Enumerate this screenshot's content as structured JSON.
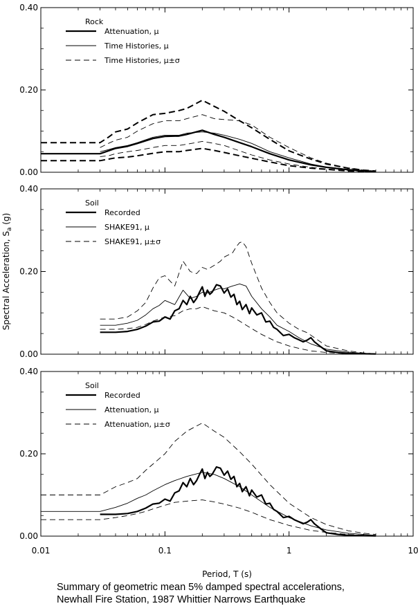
{
  "caption": [
    "Summary of geometric mean 5% damped spectral accelerations,",
    "Newhall Fire Station, 1987 Whittier Narrows Earthquake"
  ],
  "chart_data": [
    {
      "type": "line",
      "panel_title": "Rock",
      "xscale": "log",
      "xlim": [
        0.01,
        10
      ],
      "ylim": [
        0,
        0.4
      ],
      "yticks": [
        "0.00",
        "0.20",
        "0.40"
      ],
      "ylabel": "",
      "xlabel": "",
      "legend_position": "top-left",
      "series": [
        {
          "name": "Attenuation, μ",
          "style": "thick-solid",
          "bound": "mu",
          "x": [
            0.01,
            0.03,
            0.035,
            0.04,
            0.05,
            0.06,
            0.08,
            0.1,
            0.13,
            0.15,
            0.2,
            0.25,
            0.3,
            0.4,
            0.5,
            0.7,
            1.0,
            1.5,
            2.0,
            3.0,
            4.0,
            5.0
          ],
          "y": [
            0.045,
            0.045,
            0.052,
            0.058,
            0.063,
            0.07,
            0.082,
            0.087,
            0.088,
            0.092,
            0.102,
            0.092,
            0.085,
            0.072,
            0.062,
            0.045,
            0.03,
            0.018,
            0.012,
            0.006,
            0.003,
            0.002
          ]
        },
        {
          "name": "",
          "style": "thick-dashed",
          "bound": "mu+sigma",
          "x": [
            0.01,
            0.03,
            0.035,
            0.04,
            0.05,
            0.06,
            0.08,
            0.1,
            0.13,
            0.15,
            0.2,
            0.25,
            0.3,
            0.4,
            0.5,
            0.7,
            1.0,
            1.5,
            2.0,
            3.0,
            4.0,
            5.0
          ],
          "y": [
            0.072,
            0.072,
            0.085,
            0.098,
            0.105,
            0.12,
            0.14,
            0.143,
            0.15,
            0.155,
            0.175,
            0.16,
            0.148,
            0.125,
            0.108,
            0.08,
            0.052,
            0.032,
            0.02,
            0.01,
            0.005,
            0.003
          ]
        },
        {
          "name": "",
          "style": "thick-dashed",
          "bound": "mu-sigma",
          "x": [
            0.01,
            0.03,
            0.035,
            0.04,
            0.05,
            0.06,
            0.08,
            0.1,
            0.13,
            0.15,
            0.2,
            0.25,
            0.3,
            0.4,
            0.5,
            0.7,
            1.0,
            1.5,
            2.0,
            3.0,
            4.0,
            5.0
          ],
          "y": [
            0.028,
            0.028,
            0.032,
            0.035,
            0.037,
            0.04,
            0.046,
            0.05,
            0.05,
            0.053,
            0.058,
            0.053,
            0.048,
            0.04,
            0.034,
            0.025,
            0.016,
            0.01,
            0.007,
            0.003,
            0.002,
            0.001
          ]
        },
        {
          "name": "Time Histories, μ",
          "style": "thin-solid",
          "bound": "mu",
          "x": [
            0.03,
            0.035,
            0.04,
            0.05,
            0.06,
            0.08,
            0.1,
            0.13,
            0.15,
            0.2,
            0.25,
            0.3,
            0.4,
            0.5,
            0.7,
            1.0,
            1.5,
            2.0,
            3.0,
            4.0,
            5.0
          ],
          "y": [
            0.05,
            0.055,
            0.06,
            0.065,
            0.072,
            0.085,
            0.09,
            0.09,
            0.095,
            0.098,
            0.095,
            0.09,
            0.08,
            0.07,
            0.05,
            0.035,
            0.02,
            0.013,
            0.007,
            0.004,
            0.002
          ]
        },
        {
          "name": "Time Histories, μ±σ",
          "style": "thin-dashed",
          "bound": "mu+sigma",
          "x": [
            0.03,
            0.035,
            0.04,
            0.05,
            0.06,
            0.08,
            0.1,
            0.13,
            0.15,
            0.2,
            0.25,
            0.3,
            0.4,
            0.5,
            0.7,
            1.0,
            1.5,
            2.0,
            3.0,
            4.0,
            5.0
          ],
          "y": [
            0.06,
            0.07,
            0.078,
            0.085,
            0.1,
            0.118,
            0.125,
            0.125,
            0.13,
            0.14,
            0.13,
            0.128,
            0.125,
            0.115,
            0.085,
            0.06,
            0.035,
            0.022,
            0.01,
            0.005,
            0.003
          ]
        },
        {
          "name": "",
          "style": "thin-dashed",
          "bound": "mu-sigma",
          "x": [
            0.03,
            0.035,
            0.04,
            0.05,
            0.06,
            0.08,
            0.1,
            0.13,
            0.15,
            0.2,
            0.25,
            0.3,
            0.4,
            0.5,
            0.7,
            1.0,
            1.5,
            2.0,
            3.0,
            4.0,
            5.0
          ],
          "y": [
            0.038,
            0.04,
            0.045,
            0.05,
            0.053,
            0.06,
            0.065,
            0.065,
            0.068,
            0.075,
            0.07,
            0.065,
            0.052,
            0.042,
            0.03,
            0.02,
            0.012,
            0.008,
            0.004,
            0.002,
            0.001
          ]
        }
      ]
    },
    {
      "type": "line",
      "panel_title": "Soil",
      "xscale": "log",
      "xlim": [
        0.01,
        10
      ],
      "ylim": [
        0,
        0.4
      ],
      "yticks": [
        "0.00",
        "0.20",
        "0.40"
      ],
      "ylabel": "Spectral Acceleration, S",
      "ylabel_subscript": "a",
      "ylabel_unit": " (g)",
      "xlabel": "",
      "legend_position": "top-left",
      "series": [
        {
          "name": "Recorded",
          "style": "thick-solid",
          "bound": "mu",
          "x": [
            0.03,
            0.04,
            0.05,
            0.06,
            0.07,
            0.08,
            0.09,
            0.1,
            0.11,
            0.12,
            0.13,
            0.14,
            0.15,
            0.16,
            0.17,
            0.18,
            0.19,
            0.2,
            0.21,
            0.22,
            0.23,
            0.24,
            0.26,
            0.28,
            0.3,
            0.32,
            0.34,
            0.36,
            0.38,
            0.4,
            0.42,
            0.45,
            0.48,
            0.5,
            0.55,
            0.6,
            0.65,
            0.7,
            0.75,
            0.8,
            0.9,
            1.0,
            1.1,
            1.2,
            1.3,
            1.4,
            1.5,
            1.6,
            1.8,
            2.0,
            2.5,
            3.0,
            4.0,
            5.0
          ],
          "y": [
            0.053,
            0.053,
            0.055,
            0.06,
            0.068,
            0.078,
            0.08,
            0.09,
            0.085,
            0.105,
            0.11,
            0.13,
            0.12,
            0.14,
            0.125,
            0.135,
            0.15,
            0.163,
            0.14,
            0.155,
            0.145,
            0.15,
            0.168,
            0.165,
            0.148,
            0.158,
            0.138,
            0.145,
            0.12,
            0.128,
            0.108,
            0.12,
            0.098,
            0.112,
            0.095,
            0.1,
            0.078,
            0.08,
            0.065,
            0.06,
            0.045,
            0.048,
            0.04,
            0.035,
            0.03,
            0.034,
            0.04,
            0.03,
            0.018,
            0.008,
            0.004,
            0.002,
            0.001,
            0.0005
          ]
        },
        {
          "name": "SHAKE91, μ",
          "style": "thin-solid",
          "bound": "mu",
          "x": [
            0.03,
            0.04,
            0.05,
            0.06,
            0.07,
            0.08,
            0.09,
            0.1,
            0.12,
            0.14,
            0.16,
            0.18,
            0.2,
            0.22,
            0.25,
            0.28,
            0.3,
            0.35,
            0.4,
            0.45,
            0.5,
            0.6,
            0.7,
            0.8,
            1.0,
            1.2,
            1.5,
            2.0,
            3.0,
            4.0,
            5.0
          ],
          "y": [
            0.07,
            0.07,
            0.075,
            0.082,
            0.095,
            0.11,
            0.118,
            0.13,
            0.12,
            0.155,
            0.135,
            0.14,
            0.15,
            0.148,
            0.155,
            0.16,
            0.158,
            0.165,
            0.17,
            0.165,
            0.14,
            0.11,
            0.09,
            0.07,
            0.055,
            0.04,
            0.025,
            0.012,
            0.005,
            0.002,
            0.001
          ]
        },
        {
          "name": "SHAKE91, μ±σ",
          "style": "thin-dashed",
          "bound": "mu+sigma",
          "x": [
            0.03,
            0.04,
            0.05,
            0.06,
            0.07,
            0.08,
            0.09,
            0.1,
            0.12,
            0.14,
            0.16,
            0.18,
            0.2,
            0.22,
            0.25,
            0.28,
            0.3,
            0.35,
            0.38,
            0.4,
            0.42,
            0.45,
            0.5,
            0.6,
            0.7,
            0.8,
            1.0,
            1.2,
            1.4,
            1.6,
            2.0,
            3.0,
            4.0,
            5.0
          ],
          "y": [
            0.085,
            0.085,
            0.09,
            0.105,
            0.125,
            0.16,
            0.185,
            0.19,
            0.165,
            0.225,
            0.2,
            0.195,
            0.21,
            0.205,
            0.215,
            0.225,
            0.235,
            0.245,
            0.262,
            0.27,
            0.272,
            0.26,
            0.22,
            0.16,
            0.125,
            0.1,
            0.075,
            0.06,
            0.052,
            0.04,
            0.02,
            0.008,
            0.003,
            0.001
          ]
        },
        {
          "name": "",
          "style": "thin-dashed",
          "bound": "mu-sigma",
          "x": [
            0.03,
            0.04,
            0.05,
            0.06,
            0.07,
            0.08,
            0.09,
            0.1,
            0.12,
            0.14,
            0.16,
            0.18,
            0.2,
            0.25,
            0.3,
            0.35,
            0.4,
            0.5,
            0.6,
            0.7,
            0.8,
            1.0,
            1.2,
            1.5,
            2.0,
            3.0,
            4.0,
            5.0
          ],
          "y": [
            0.06,
            0.06,
            0.062,
            0.065,
            0.072,
            0.08,
            0.085,
            0.09,
            0.093,
            0.105,
            0.11,
            0.11,
            0.115,
            0.105,
            0.1,
            0.09,
            0.08,
            0.062,
            0.048,
            0.038,
            0.03,
            0.02,
            0.014,
            0.008,
            0.004,
            0.001,
            0.0005,
            0.0002
          ]
        }
      ]
    },
    {
      "type": "line",
      "panel_title": "Soil",
      "xscale": "log",
      "xlim": [
        0.01,
        10
      ],
      "ylim": [
        0,
        0.4
      ],
      "yticks": [
        "0.00",
        "0.20",
        "0.40"
      ],
      "xticks": [
        "0.01",
        "0.1",
        "1",
        "10"
      ],
      "ylabel": "",
      "xlabel": "Period, T (s)",
      "legend_position": "top-left",
      "series": [
        {
          "name": "Recorded",
          "style": "thick-solid",
          "bound": "mu",
          "x": [
            0.03,
            0.04,
            0.05,
            0.06,
            0.07,
            0.08,
            0.09,
            0.1,
            0.11,
            0.12,
            0.13,
            0.14,
            0.15,
            0.16,
            0.17,
            0.18,
            0.19,
            0.2,
            0.21,
            0.22,
            0.23,
            0.24,
            0.26,
            0.28,
            0.3,
            0.32,
            0.34,
            0.36,
            0.38,
            0.4,
            0.42,
            0.45,
            0.48,
            0.5,
            0.55,
            0.6,
            0.65,
            0.7,
            0.75,
            0.8,
            0.9,
            1.0,
            1.1,
            1.2,
            1.3,
            1.4,
            1.5,
            1.6,
            1.8,
            2.0,
            2.5,
            3.0,
            4.0,
            5.0
          ],
          "y": [
            0.053,
            0.053,
            0.055,
            0.06,
            0.068,
            0.078,
            0.08,
            0.09,
            0.085,
            0.105,
            0.11,
            0.13,
            0.12,
            0.14,
            0.125,
            0.135,
            0.15,
            0.163,
            0.14,
            0.155,
            0.145,
            0.15,
            0.168,
            0.165,
            0.148,
            0.158,
            0.138,
            0.145,
            0.12,
            0.128,
            0.108,
            0.12,
            0.098,
            0.112,
            0.095,
            0.1,
            0.078,
            0.08,
            0.065,
            0.06,
            0.045,
            0.048,
            0.04,
            0.035,
            0.03,
            0.034,
            0.04,
            0.03,
            0.018,
            0.008,
            0.004,
            0.002,
            0.001,
            0.0005
          ]
        },
        {
          "name": "Attenuation, μ",
          "style": "thin-solid",
          "bound": "mu",
          "x": [
            0.01,
            0.03,
            0.04,
            0.05,
            0.06,
            0.07,
            0.08,
            0.1,
            0.12,
            0.15,
            0.2,
            0.25,
            0.3,
            0.4,
            0.5,
            0.7,
            1.0,
            1.5,
            2.0,
            3.0,
            4.0,
            5.0
          ],
          "y": [
            0.06,
            0.06,
            0.07,
            0.08,
            0.092,
            0.1,
            0.11,
            0.125,
            0.135,
            0.145,
            0.155,
            0.15,
            0.14,
            0.12,
            0.1,
            0.07,
            0.045,
            0.025,
            0.015,
            0.007,
            0.004,
            0.002
          ]
        },
        {
          "name": "Attenuation, μ±σ",
          "style": "thin-dashed",
          "bound": "mu+sigma",
          "x": [
            0.01,
            0.03,
            0.04,
            0.05,
            0.06,
            0.07,
            0.08,
            0.1,
            0.12,
            0.15,
            0.2,
            0.25,
            0.3,
            0.4,
            0.5,
            0.7,
            1.0,
            1.5,
            2.0,
            3.0,
            4.0,
            5.0
          ],
          "y": [
            0.1,
            0.1,
            0.12,
            0.13,
            0.14,
            0.16,
            0.175,
            0.2,
            0.23,
            0.255,
            0.275,
            0.255,
            0.24,
            0.205,
            0.175,
            0.125,
            0.08,
            0.045,
            0.028,
            0.013,
            0.007,
            0.004
          ]
        },
        {
          "name": "",
          "style": "thin-dashed",
          "bound": "mu-sigma",
          "x": [
            0.01,
            0.03,
            0.04,
            0.05,
            0.06,
            0.07,
            0.08,
            0.1,
            0.12,
            0.15,
            0.2,
            0.25,
            0.3,
            0.4,
            0.5,
            0.7,
            1.0,
            1.5,
            2.0,
            3.0,
            4.0,
            5.0
          ],
          "y": [
            0.04,
            0.04,
            0.045,
            0.05,
            0.055,
            0.06,
            0.066,
            0.075,
            0.082,
            0.085,
            0.088,
            0.083,
            0.078,
            0.068,
            0.058,
            0.04,
            0.026,
            0.014,
            0.009,
            0.004,
            0.002,
            0.001
          ]
        }
      ]
    }
  ]
}
